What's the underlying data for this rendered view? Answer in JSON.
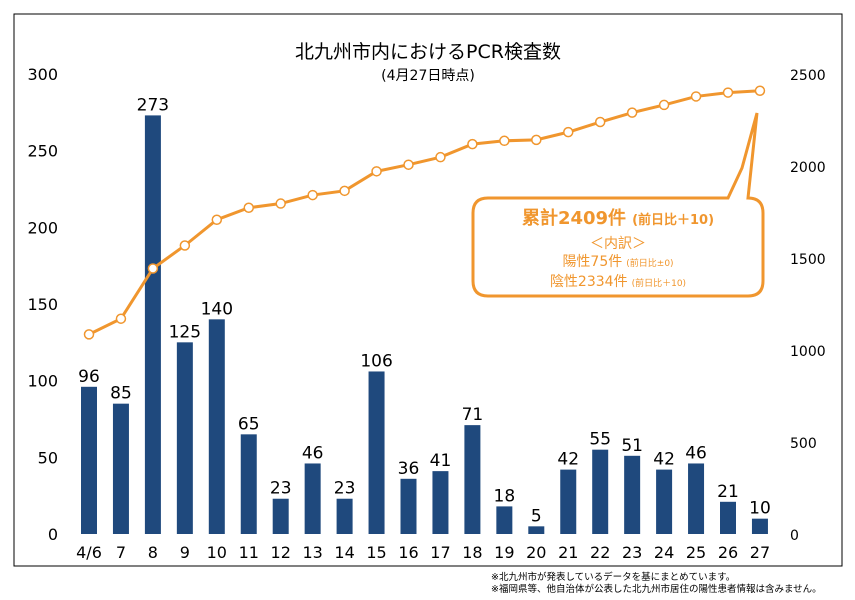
{
  "chart_data": {
    "type": "bar+line",
    "title": "北九州市内におけるPCR検査数",
    "subtitle": "(4月27日時点)",
    "categories": [
      "4/6",
      "7",
      "8",
      "9",
      "10",
      "11",
      "12",
      "13",
      "14",
      "15",
      "16",
      "17",
      "18",
      "19",
      "20",
      "21",
      "22",
      "23",
      "24",
      "25",
      "26",
      "27"
    ],
    "series": [
      {
        "type": "bar",
        "axis": "left",
        "color": "#1f497d",
        "values": [
          96,
          85,
          273,
          125,
          140,
          65,
          23,
          46,
          23,
          106,
          36,
          41,
          71,
          18,
          5,
          42,
          55,
          51,
          42,
          46,
          21,
          10
        ]
      },
      {
        "type": "line",
        "axis": "right",
        "color": "#f0962e",
        "values": [
          1085,
          1170,
          1443,
          1568,
          1708,
          1773,
          1796,
          1842,
          1865,
          1971,
          2007,
          2048,
          2119,
          2137,
          2142,
          2184,
          2239,
          2290,
          2332,
          2378,
          2399,
          2409
        ]
      }
    ],
    "ylim_left": [
      0,
      300
    ],
    "yticks_left": [
      0,
      50,
      100,
      150,
      200,
      250,
      300
    ],
    "ylim_right": [
      0,
      2500
    ],
    "yticks_right": [
      0,
      500,
      1000,
      1500,
      2000,
      2500
    ],
    "grid": false,
    "annotation": {
      "headline": "累計2409件",
      "headline_diff": "(前日比＋10)",
      "breakdown_title": "＜内訳＞",
      "positive": "陽性75件",
      "positive_diff": "(前日比±0)",
      "negative": "陰性2334件",
      "negative_diff": "(前日比＋10)"
    }
  },
  "notes": [
    "※北九州市が発表しているデータを基にまとめています。",
    "※福岡県等、他自治体が公表した北九州市居住の陽性患者情報は含みません。"
  ]
}
